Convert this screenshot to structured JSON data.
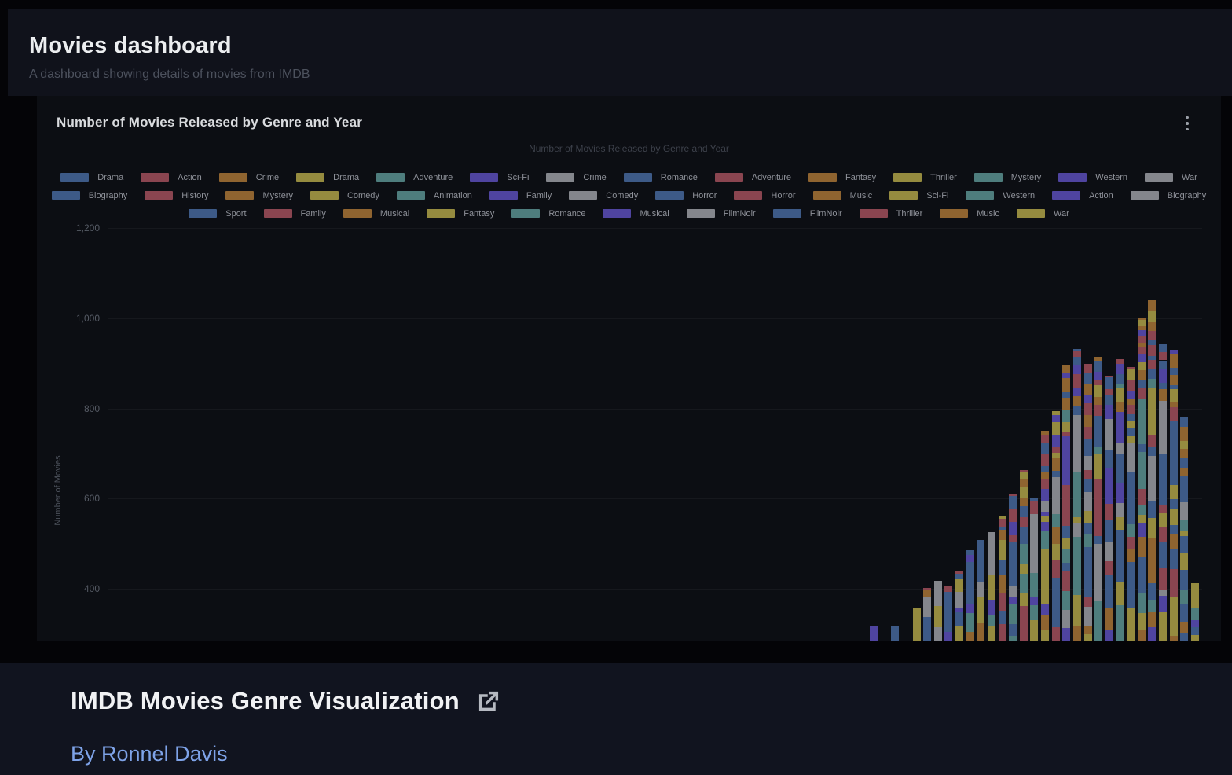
{
  "header": {
    "title": "Movies dashboard",
    "subtitle": "A dashboard showing details of movies from IMDB"
  },
  "panel": {
    "title": "Number of Movies Released by Genre and Year",
    "menu_icon": "kebab-menu"
  },
  "chart_data": {
    "type": "bar",
    "stacked": true,
    "title": "Number of Movies Released by Genre and Year",
    "ylabel": "Number of Movies",
    "grid": true,
    "legend_position": "top",
    "x_tick_labels_visible": false,
    "y_ticks": [
      {
        "label": "400",
        "value": 400
      },
      {
        "label": "600",
        "value": 600
      },
      {
        "label": "800",
        "value": 800
      },
      {
        "label": "1,000",
        "value": 1000
      },
      {
        "label": "1,200",
        "value": 1200
      }
    ],
    "visible_baseline_value": 283,
    "values": [
      316,
      null,
      318,
      null,
      356,
      402,
      417,
      407,
      440,
      485,
      508,
      525,
      560,
      609,
      663,
      602,
      750,
      794,
      897,
      932,
      899,
      914,
      872,
      909,
      892,
      1000,
      1039,
      942,
      930,
      781,
      412
    ],
    "palette": [
      "#3d5a87",
      "#8a4550",
      "#8f6430",
      "#958b3f",
      "#4e7d7d",
      "#4f44a0",
      "#84868c"
    ],
    "legend_rows": [
      [
        {
          "label": "Drama",
          "color": 0
        },
        {
          "label": "Action",
          "color": 1
        },
        {
          "label": "Crime",
          "color": 2
        },
        {
          "label": "Drama",
          "color": 3
        },
        {
          "label": "Adventure",
          "color": 4
        },
        {
          "label": "Sci-Fi",
          "color": 5
        },
        {
          "label": "Crime",
          "color": 6
        },
        {
          "label": "Romance",
          "color": 0
        },
        {
          "label": "Adventure",
          "color": 1
        },
        {
          "label": "Fantasy",
          "color": 2
        },
        {
          "label": "Thriller",
          "color": 3
        },
        {
          "label": "Mystery",
          "color": 4
        },
        {
          "label": "Western",
          "color": 5
        },
        {
          "label": "War",
          "color": 6
        }
      ],
      [
        {
          "label": "Biography",
          "color": 0
        },
        {
          "label": "History",
          "color": 1
        },
        {
          "label": "Mystery",
          "color": 2
        },
        {
          "label": "Comedy",
          "color": 3
        },
        {
          "label": "Animation",
          "color": 4
        },
        {
          "label": "Family",
          "color": 5
        },
        {
          "label": "Comedy",
          "color": 6
        },
        {
          "label": "Horror",
          "color": 0
        },
        {
          "label": "Horror",
          "color": 1
        },
        {
          "label": "Music",
          "color": 2
        },
        {
          "label": "Sci-Fi",
          "color": 3
        },
        {
          "label": "Western",
          "color": 4
        },
        {
          "label": "Action",
          "color": 5
        },
        {
          "label": "Biography",
          "color": 6
        }
      ],
      [
        {
          "label": "Sport",
          "color": 0
        },
        {
          "label": "Family",
          "color": 1
        },
        {
          "label": "Musical",
          "color": 2
        },
        {
          "label": "Fantasy",
          "color": 3
        },
        {
          "label": "Romance",
          "color": 4
        },
        {
          "label": "Musical",
          "color": 5
        },
        {
          "label": "FilmNoir",
          "color": 6
        },
        {
          "label": "FilmNoir",
          "color": 0
        },
        {
          "label": "Thriller",
          "color": 1
        },
        {
          "label": "Music",
          "color": 2
        },
        {
          "label": "War",
          "color": 3
        }
      ]
    ]
  },
  "footer": {
    "title": "IMDB Movies Genre Visualization",
    "byline": "By Ronnel Davis",
    "icon": "external-link"
  },
  "colors": {
    "page_bg": "#040407",
    "header_bg": "#10121b",
    "panel_bg": "#0c0e13",
    "footer_bg": "#11141f",
    "link_blue": "#7ea3e8"
  }
}
